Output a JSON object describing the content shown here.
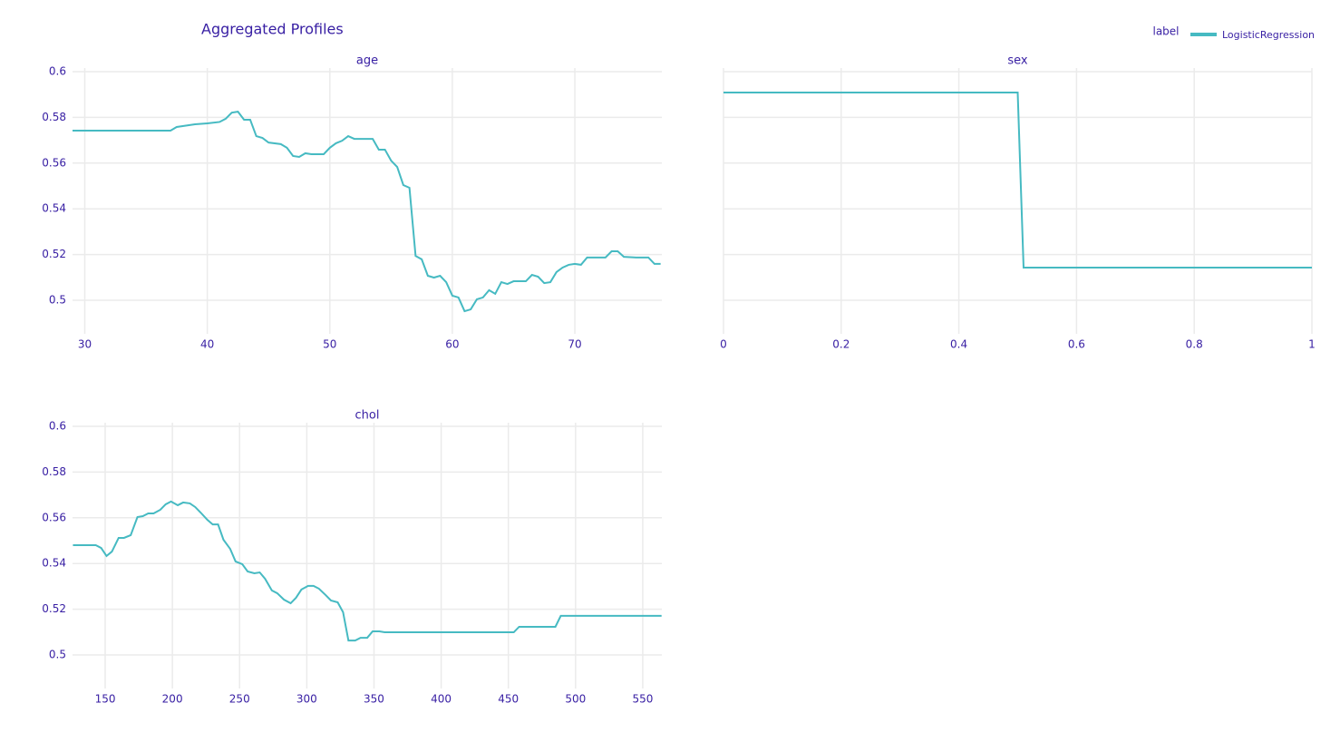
{
  "title": "Aggregated Profiles",
  "legend": {
    "title": "label",
    "position": "top-right"
  },
  "chart_data": [
    {
      "type": "line",
      "title": "age",
      "x": [
        29,
        37,
        37.5,
        38.5,
        39,
        40,
        41,
        41.5,
        42,
        42.5,
        43,
        43.5,
        44,
        44.5,
        45,
        46,
        46.5,
        47,
        47.5,
        48,
        48.5,
        49.5,
        50,
        50.5,
        51,
        51.5,
        52,
        53,
        53.5,
        54,
        54.5,
        55,
        55.5,
        56,
        56.5,
        57,
        57.5,
        58,
        58.5,
        59,
        59.5,
        60,
        60.5,
        61,
        61.5,
        62,
        62.5,
        63,
        63.5,
        64,
        64.5,
        65,
        66,
        66.5,
        67,
        67.5,
        68,
        68.5,
        69,
        69.5,
        70,
        70.5,
        71,
        72,
        72.5,
        73,
        73.5,
        74,
        75,
        76,
        76.5,
        77
      ],
      "series": [
        {
          "name": "LogisticRegression",
          "color": "#46bac2",
          "values": [
            0.5742,
            0.5742,
            0.5758,
            0.5766,
            0.577,
            0.5774,
            0.578,
            0.5794,
            0.5821,
            0.5825,
            0.579,
            0.579,
            0.5718,
            0.571,
            0.569,
            0.5683,
            0.5667,
            0.5631,
            0.5627,
            0.5643,
            0.5639,
            0.5639,
            0.5667,
            0.5687,
            0.5698,
            0.5718,
            0.5706,
            0.5706,
            0.5706,
            0.5659,
            0.5659,
            0.5611,
            0.5583,
            0.5504,
            0.5492,
            0.5194,
            0.5179,
            0.5107,
            0.5099,
            0.5107,
            0.5079,
            0.502,
            0.5012,
            0.4952,
            0.496,
            0.5004,
            0.5012,
            0.5044,
            0.5028,
            0.5079,
            0.5071,
            0.5083,
            0.5083,
            0.5111,
            0.5103,
            0.5075,
            0.5079,
            0.5123,
            0.5143,
            0.5155,
            0.5159,
            0.5155,
            0.5187,
            0.5187,
            0.5187,
            0.5214,
            0.5214,
            0.519,
            0.5187,
            0.5187,
            0.5159,
            0.5159
          ]
        }
      ],
      "xlim": [
        29,
        77.1
      ],
      "ylim": [
        0.4853,
        0.6016
      ],
      "xticks": [
        30,
        40,
        50,
        60,
        70
      ],
      "yticks": [
        0.5,
        0.52,
        0.54,
        0.56,
        0.58,
        0.6
      ],
      "ytick_labels": true,
      "grid": true
    },
    {
      "type": "line",
      "title": "sex",
      "x": [
        0,
        0.5,
        0.51,
        1
      ],
      "series": [
        {
          "name": "LogisticRegression",
          "color": "#46bac2",
          "values": [
            0.5909,
            0.5909,
            0.5143,
            0.5143
          ]
        }
      ],
      "xlim": [
        0,
        1
      ],
      "ylim": [
        0.4853,
        0.6016
      ],
      "xticks": [
        0,
        0.2,
        0.4,
        0.6,
        0.8,
        1
      ],
      "yticks": [
        0.5,
        0.52,
        0.54,
        0.56,
        0.58,
        0.6
      ],
      "ytick_labels": false,
      "grid": true
    },
    {
      "type": "line",
      "title": "chol",
      "x": [
        126,
        143,
        147,
        151,
        155,
        160,
        164,
        169,
        174,
        178,
        182,
        186,
        191,
        195,
        199,
        204,
        208,
        213,
        217,
        221,
        226,
        230,
        234,
        238,
        243,
        247,
        252,
        256,
        261,
        265,
        269,
        274,
        278,
        283,
        288,
        292,
        296,
        301,
        305,
        309,
        314,
        318,
        323,
        327,
        331,
        336,
        340,
        345,
        349,
        354,
        358,
        454,
        458,
        485,
        489,
        564
      ],
      "series": [
        {
          "name": "LogisticRegression",
          "color": "#46bac2",
          "values": [
            0.548,
            0.548,
            0.5468,
            0.5433,
            0.5452,
            0.5512,
            0.5512,
            0.5524,
            0.5603,
            0.5607,
            0.5619,
            0.5619,
            0.5635,
            0.5659,
            0.5671,
            0.5655,
            0.5667,
            0.5663,
            0.5647,
            0.5623,
            0.5591,
            0.5571,
            0.5571,
            0.5504,
            0.5464,
            0.5409,
            0.5397,
            0.5365,
            0.5357,
            0.5361,
            0.5333,
            0.5282,
            0.527,
            0.5242,
            0.5226,
            0.525,
            0.5286,
            0.5302,
            0.5302,
            0.529,
            0.5262,
            0.5238,
            0.523,
            0.5187,
            0.5063,
            0.5063,
            0.5075,
            0.5075,
            0.5103,
            0.5103,
            0.5099,
            0.5099,
            0.5123,
            0.5123,
            0.5171,
            0.5171
          ]
        }
      ],
      "xlim": [
        125.7,
        564.2
      ],
      "ylim": [
        0.4853,
        0.6016
      ],
      "xticks": [
        150,
        200,
        250,
        300,
        350,
        400,
        450,
        500,
        550
      ],
      "yticks": [
        0.5,
        0.52,
        0.54,
        0.56,
        0.58,
        0.6
      ],
      "ytick_labels": true,
      "grid": true
    }
  ]
}
